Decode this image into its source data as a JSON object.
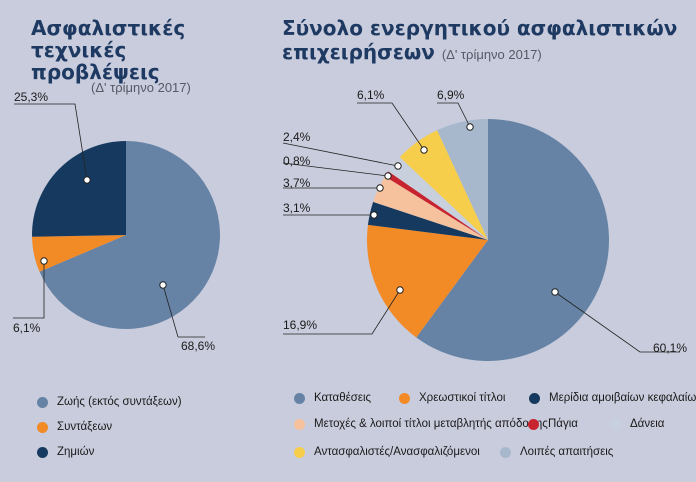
{
  "chart_data": [
    {
      "type": "pie",
      "title": "Ασφαλιστικές τεχνικές προβλέψεις",
      "subtitle": "(Δ' τρίμηνο 2017)",
      "series": [
        {
          "name": "Ζωής (εκτός συντάξεων)",
          "value": 68.6,
          "label": "68,6%",
          "color": "#6683a5"
        },
        {
          "name": "Συντάξεων",
          "value": 6.1,
          "label": "6,1%",
          "color": "#f28a26"
        },
        {
          "name": "Ζημιών",
          "value": 25.3,
          "label": "25,3%",
          "color": "#163a5f"
        }
      ]
    },
    {
      "type": "pie",
      "title_line1": "Σύνολο ενεργητικού ασφαλιστικών",
      "title_line2": "επιχειρήσεων",
      "subtitle": "(Δ' τρίμηνο 2017)",
      "series": [
        {
          "name": "Καταθέσεις",
          "value": 60.1,
          "label": "60,1%",
          "color": "#6683a5"
        },
        {
          "name": "Χρεωστικοί τίτλοι",
          "value": 16.9,
          "label": "16,9%",
          "color": "#f28a26"
        },
        {
          "name": "Μερίδια αμοιβαίων κεφαλαίων",
          "value": 3.1,
          "label": "3,1%",
          "color": "#163a5f"
        },
        {
          "name": "Μετοχές & λοιποί τίτλοι μεταβλητής απόδοσης",
          "value": 3.7,
          "label": "3,7%",
          "color": "#f6c19d"
        },
        {
          "name": "Πάγια",
          "value": 0.8,
          "label": "0,8%",
          "color": "#c8242f"
        },
        {
          "name": "Δάνεια",
          "value": 2.4,
          "label": "2,4%",
          "color": "#c7d0dc"
        },
        {
          "name": "Αντασφαλιστές/Ανασφαλιζόμενοι",
          "value": 6.1,
          "label": "6,1%",
          "color": "#f7cd4c"
        },
        {
          "name": "Λοιπές απαιτήσεις",
          "value": 6.9,
          "label": "6,9%",
          "color": "#a8b8cc"
        }
      ]
    }
  ]
}
